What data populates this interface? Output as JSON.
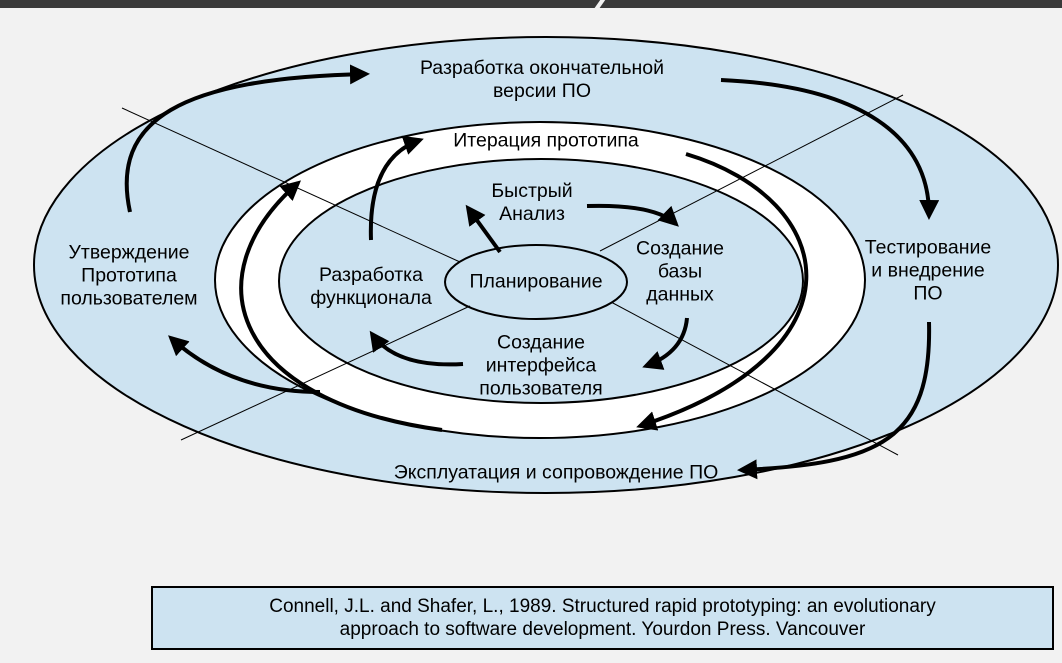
{
  "diagram": {
    "colors": {
      "background": "#f2f2f2",
      "fill": "#cde3f1",
      "inner_ring": "#ffffff",
      "stroke": "#000000"
    },
    "labels": {
      "final_version": [
        "Разработка окончательной",
        "версии ПО"
      ],
      "prototype_iteration": "Итерация прототипа",
      "quick_analysis": [
        "Быстрый",
        "Анализ"
      ],
      "database_creation": [
        "Создание",
        "базы",
        "данных"
      ],
      "planning": "Планирование",
      "functional_development": [
        "Разработка",
        "функционала"
      ],
      "ui_creation": [
        "Создание",
        "интерфейса",
        "пользователя"
      ],
      "prototype_approval": [
        "Утверждение",
        "Прототипа",
        "пользователем"
      ],
      "testing_deployment": [
        "Тестирование",
        "и внедрение",
        "ПО"
      ],
      "operation_maintenance": "Эксплуатация и сопровождение ПО"
    }
  },
  "citation": {
    "line1": "Connell, J.L. and Shafer, L., 1989. Structured rapid prototyping: an evolutionary",
    "line2": "approach to software development. Yourdon Press. Vancouver"
  }
}
